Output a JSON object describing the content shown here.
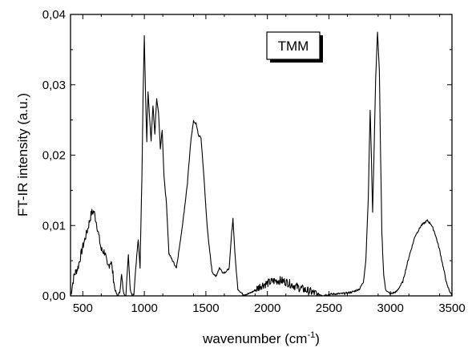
{
  "chart_data": {
    "type": "line",
    "title": "",
    "xlabel": "wavenumber (cm",
    "xlabel_sup": "-1",
    "xlabel_close": ")",
    "ylabel": "FT-IR intensity (a.u.)",
    "xlim": [
      400,
      3500
    ],
    "ylim": [
      0,
      0.04
    ],
    "x_ticks": [
      500,
      1000,
      1500,
      2000,
      2500,
      3000,
      3500
    ],
    "x_tick_labels": [
      "500",
      "1000",
      "1500",
      "2000",
      "2500",
      "3000",
      "3500"
    ],
    "y_ticks": [
      0,
      0.01,
      0.02,
      0.03,
      0.04
    ],
    "y_tick_labels": [
      "0,00",
      "0,01",
      "0,02",
      "0,03",
      "0,04"
    ],
    "grid": false,
    "legend": {
      "label": "TMM",
      "placement": "top-center"
    },
    "line_color": "#000000",
    "series": [
      {
        "name": "TMM",
        "x": [
          400,
          430,
          460,
          500,
          540,
          570,
          590,
          610,
          630,
          650,
          680,
          700,
          730,
          760,
          780,
          800,
          815,
          830,
          850,
          870,
          885,
          900,
          915,
          930,
          950,
          965,
          980,
          990,
          1000,
          1010,
          1020,
          1030,
          1040,
          1055,
          1070,
          1085,
          1100,
          1115,
          1130,
          1145,
          1160,
          1180,
          1200,
          1230,
          1260,
          1290,
          1320,
          1350,
          1380,
          1400,
          1420,
          1440,
          1460,
          1480,
          1500,
          1520,
          1550,
          1580,
          1610,
          1640,
          1670,
          1690,
          1710,
          1720,
          1740,
          1760,
          1800,
          1850,
          1900,
          1950,
          2000,
          2050,
          2100,
          2150,
          2200,
          2250,
          2300,
          2350,
          2400,
          2450,
          2500,
          2550,
          2600,
          2650,
          2700,
          2750,
          2780,
          2800,
          2820,
          2835,
          2845,
          2855,
          2865,
          2880,
          2895,
          2910,
          2920,
          2930,
          2945,
          2960,
          2980,
          3000,
          3050,
          3100,
          3150,
          3200,
          3250,
          3300,
          3330,
          3360,
          3400,
          3430,
          3460,
          3500
        ],
        "y": [
          0.0,
          0.003,
          0.004,
          0.007,
          0.0095,
          0.0118,
          0.012,
          0.0105,
          0.0085,
          0.0065,
          0.0062,
          0.004,
          0.005,
          0.001,
          0.0,
          0.0005,
          0.003,
          0.0005,
          0.0,
          0.006,
          0.001,
          0.0,
          0.0003,
          0.004,
          0.008,
          0.004,
          0.017,
          0.029,
          0.037,
          0.028,
          0.022,
          0.029,
          0.026,
          0.022,
          0.027,
          0.023,
          0.028,
          0.026,
          0.021,
          0.0235,
          0.017,
          0.013,
          0.006,
          0.005,
          0.004,
          0.0075,
          0.0115,
          0.016,
          0.0225,
          0.0248,
          0.0245,
          0.0228,
          0.0225,
          0.018,
          0.0125,
          0.008,
          0.0035,
          0.0027,
          0.004,
          0.0033,
          0.0035,
          0.004,
          0.009,
          0.011,
          0.005,
          0.001,
          0.0002,
          0.0003,
          0.0008,
          0.0015,
          0.0018,
          0.0021,
          0.0022,
          0.002,
          0.0016,
          0.0012,
          0.0009,
          0.0006,
          0.0003,
          0.0001,
          0.0002,
          0.0003,
          0.0003,
          0.0004,
          0.0006,
          0.001,
          0.002,
          0.005,
          0.014,
          0.0265,
          0.02,
          0.012,
          0.019,
          0.031,
          0.0374,
          0.032,
          0.02,
          0.009,
          0.003,
          0.001,
          0.0005,
          0.0003,
          0.0006,
          0.002,
          0.0055,
          0.0085,
          0.01,
          0.0107,
          0.0102,
          0.009,
          0.0065,
          0.004,
          0.0015,
          0.0
        ]
      }
    ]
  }
}
